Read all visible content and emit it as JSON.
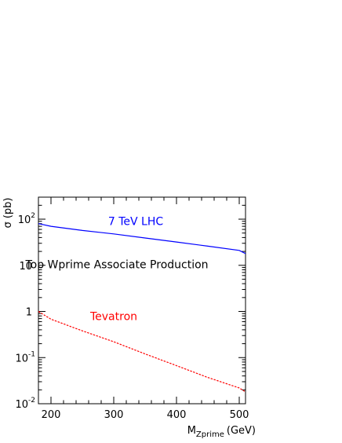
{
  "chart_data": {
    "type": "line",
    "title": "",
    "xlabel": "M",
    "xlabel_sub": "Zprime",
    "xlabel_unit": "(GeV)",
    "ylabel": "σ (pb)",
    "xlim": [
      180,
      510
    ],
    "ylim": [
      0.01,
      300
    ],
    "yscale": "log",
    "grid": false,
    "x_ticks": [
      200,
      300,
      400,
      500
    ],
    "x_tick_labels": [
      "200",
      "300",
      "400",
      "500"
    ],
    "y_ticks": [
      {
        "value": 100,
        "base": "10",
        "exp": "2"
      },
      {
        "value": 10,
        "base": "10",
        "exp": ""
      },
      {
        "value": 1,
        "base": "1",
        "exp": ""
      },
      {
        "value": 0.1,
        "base": "10",
        "exp": "-1"
      },
      {
        "value": 0.01,
        "base": "10",
        "exp": "-2"
      }
    ],
    "annotations": [
      {
        "text": "7 TeV LHC",
        "color": "#0000ff",
        "x": 335,
        "y": 75
      },
      {
        "text": "Top Wprime Associate Production",
        "color": "#000000",
        "x": 305,
        "y": 8.7
      },
      {
        "text": "Tevatron",
        "color": "#ff0000",
        "x": 300,
        "y": 0.65
      }
    ],
    "series": [
      {
        "color": "#0000ff",
        "dash": "solid",
        "x": [
          180,
          200,
          250,
          300,
          350,
          400,
          450,
          500,
          510
        ],
        "y": [
          80,
          70,
          57,
          48,
          39,
          32,
          26,
          21,
          18
        ]
      },
      {
        "color": "#ff0000",
        "dash": "dashed",
        "x": [
          180,
          200,
          250,
          300,
          350,
          400,
          450,
          500,
          510
        ],
        "y": [
          1.0,
          0.68,
          0.38,
          0.22,
          0.12,
          0.067,
          0.037,
          0.022,
          0.018
        ]
      }
    ]
  }
}
